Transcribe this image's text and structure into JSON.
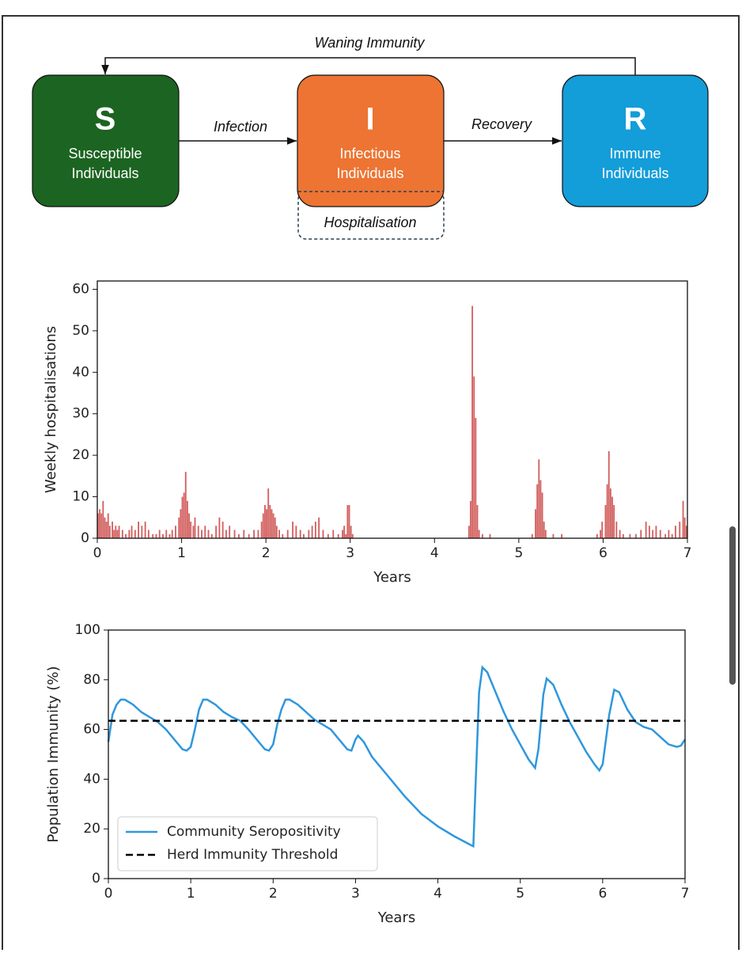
{
  "diagram": {
    "nodes": [
      {
        "letter": "S",
        "lines": [
          "Susceptible",
          "Individuals"
        ]
      },
      {
        "letter": "I",
        "lines": [
          "Infectious",
          "Individuals"
        ]
      },
      {
        "letter": "R",
        "lines": [
          "Immune",
          "Individuals"
        ]
      }
    ],
    "edges": [
      "Infection",
      "Recovery",
      "Waning Immunity"
    ],
    "hospitalisation": "Hospitalisation"
  },
  "chart_data": [
    {
      "type": "bar",
      "xlabel": "Years",
      "ylabel": "Weekly hospitalisations",
      "color": "#d2605f",
      "x": [
        0.0,
        0.02,
        0.04,
        0.06,
        0.08,
        0.1,
        0.12,
        0.14,
        0.17,
        0.19,
        0.21,
        0.23,
        0.25,
        0.29,
        0.33,
        0.37,
        0.4,
        0.44,
        0.48,
        0.52,
        0.56,
        0.6,
        0.65,
        0.69,
        0.73,
        0.77,
        0.81,
        0.85,
        0.88,
        0.92,
        0.96,
        0.98,
        1.0,
        1.02,
        1.04,
        1.06,
        1.08,
        1.1,
        1.13,
        1.15,
        1.19,
        1.23,
        1.27,
        1.31,
        1.35,
        1.4,
        1.44,
        1.48,
        1.52,
        1.56,
        1.62,
        1.67,
        1.73,
        1.79,
        1.85,
        1.9,
        1.94,
        1.96,
        1.98,
        2.0,
        2.02,
        2.04,
        2.06,
        2.08,
        2.1,
        2.12,
        2.15,
        2.19,
        2.25,
        2.31,
        2.35,
        2.4,
        2.44,
        2.5,
        2.54,
        2.58,
        2.62,
        2.67,
        2.73,
        2.79,
        2.85,
        2.9,
        2.92,
        2.94,
        2.96,
        2.98,
        3.0,
        3.02,
        4.4,
        4.42,
        4.44,
        4.46,
        4.48,
        4.5,
        4.52,
        4.56,
        4.65,
        5.15,
        5.19,
        5.21,
        5.23,
        5.25,
        5.27,
        5.29,
        5.31,
        5.4,
        5.5,
        5.92,
        5.96,
        5.98,
        6.02,
        6.04,
        6.06,
        6.08,
        6.1,
        6.12,
        6.15,
        6.19,
        6.23,
        6.31,
        6.38,
        6.44,
        6.5,
        6.54,
        6.58,
        6.62,
        6.67,
        6.73,
        6.77,
        6.81,
        6.85,
        6.9,
        6.94,
        6.96,
        6.98
      ],
      "values": [
        6,
        7,
        6,
        9,
        5,
        4,
        6,
        3,
        4,
        2,
        3,
        2,
        3,
        2,
        1,
        2,
        3,
        2,
        4,
        3,
        4,
        2,
        1,
        1,
        2,
        1,
        2,
        1,
        2,
        3,
        5,
        7,
        10,
        11,
        16,
        9,
        6,
        4,
        3,
        5,
        3,
        2,
        3,
        2,
        1,
        3,
        5,
        4,
        2,
        3,
        2,
        1,
        2,
        1,
        2,
        2,
        4,
        6,
        8,
        7,
        12,
        8,
        7,
        6,
        5,
        3,
        2,
        1,
        2,
        4,
        3,
        2,
        1,
        2,
        3,
        4,
        5,
        2,
        1,
        2,
        1,
        2,
        3,
        1,
        8,
        8,
        3,
        1,
        3,
        9,
        56,
        39,
        29,
        8,
        2,
        1,
        1,
        1,
        7,
        13,
        19,
        14,
        11,
        4,
        2,
        1,
        1,
        1,
        2,
        4,
        8,
        13,
        21,
        12,
        10,
        8,
        4,
        2,
        1,
        1,
        1,
        2,
        4,
        3,
        2,
        3,
        2,
        1,
        2,
        1,
        3,
        4,
        9,
        5,
        3
      ],
      "xlim": [
        0,
        7
      ],
      "ylim": [
        0,
        62
      ],
      "xticks": [
        0,
        1,
        2,
        3,
        4,
        5,
        6,
        7
      ],
      "yticks": [
        0,
        10,
        20,
        30,
        40,
        50,
        60
      ]
    },
    {
      "type": "line",
      "xlabel": "Years",
      "ylabel": "Population Immunity (%)",
      "legend": "lower left",
      "series": [
        {
          "name": "Community Seropositivity",
          "color": "#2f97dd",
          "linestyle": "solid",
          "x": [
            0,
            0.05,
            0.1,
            0.15,
            0.2,
            0.3,
            0.4,
            0.5,
            0.6,
            0.7,
            0.8,
            0.9,
            0.95,
            1.0,
            1.05,
            1.1,
            1.15,
            1.2,
            1.3,
            1.4,
            1.5,
            1.6,
            1.7,
            1.8,
            1.9,
            1.95,
            2.0,
            2.05,
            2.1,
            2.15,
            2.2,
            2.3,
            2.4,
            2.5,
            2.6,
            2.7,
            2.8,
            2.9,
            2.95,
            3.0,
            3.03,
            3.1,
            3.2,
            3.4,
            3.6,
            3.8,
            4.0,
            4.2,
            4.4,
            4.43,
            4.46,
            4.5,
            4.54,
            4.6,
            4.7,
            4.8,
            4.9,
            5.0,
            5.1,
            5.18,
            5.22,
            5.28,
            5.32,
            5.4,
            5.5,
            5.6,
            5.7,
            5.8,
            5.9,
            5.96,
            6.0,
            6.08,
            6.14,
            6.2,
            6.3,
            6.4,
            6.5,
            6.6,
            6.7,
            6.8,
            6.9,
            6.95,
            7.0
          ],
          "values": [
            55,
            66,
            70,
            72,
            72,
            70,
            67,
            65,
            63,
            60,
            56,
            52,
            51.5,
            53,
            60,
            68,
            72,
            72,
            70,
            67,
            65,
            63.5,
            60,
            56,
            52,
            51.5,
            54,
            62,
            68,
            72,
            72,
            70,
            67,
            64,
            62,
            60,
            56,
            52,
            51.5,
            56,
            57.5,
            55,
            49,
            41,
            33,
            26,
            21,
            17,
            13.5,
            13,
            40,
            75,
            85,
            83,
            75,
            67,
            60,
            54,
            48,
            44.5,
            52,
            74,
            80.5,
            78,
            70,
            63,
            57,
            51,
            46,
            43.5,
            46,
            66,
            76,
            75,
            68,
            63,
            61,
            60,
            57,
            54,
            53,
            53.5,
            56
          ]
        },
        {
          "name": "Herd Immunity Threshold",
          "color": "#000000",
          "linestyle": "dashed",
          "x": [
            0,
            7
          ],
          "values": [
            63.5,
            63.5
          ]
        }
      ],
      "xlim": [
        0,
        7
      ],
      "ylim": [
        0,
        100
      ],
      "xticks": [
        0,
        1,
        2,
        3,
        4,
        5,
        6,
        7
      ],
      "yticks": [
        0,
        20,
        40,
        60,
        80,
        100
      ]
    }
  ]
}
